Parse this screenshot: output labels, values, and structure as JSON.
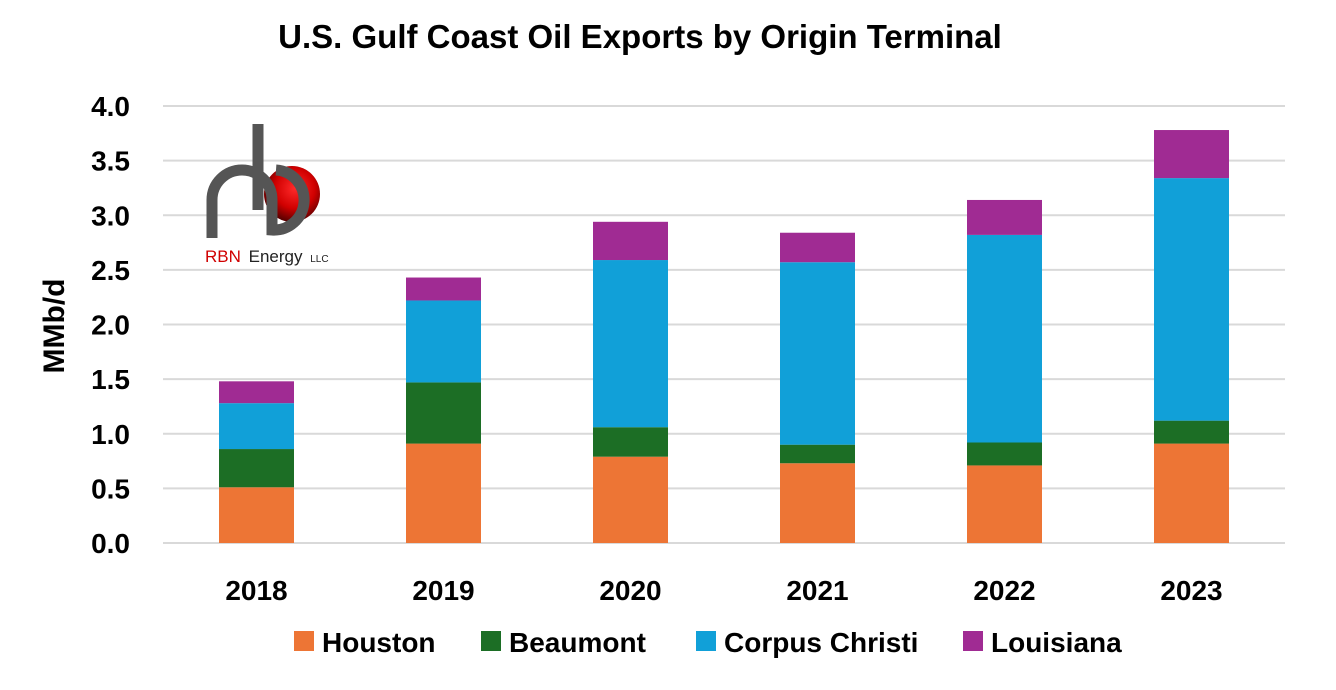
{
  "chart_data": {
    "type": "bar",
    "stacked": true,
    "title": "U.S. Gulf Coast Oil Exports by Origin Terminal",
    "xlabel": "",
    "ylabel": "MMb/d",
    "ylim": [
      0,
      4.0
    ],
    "yticks": [
      "0.0",
      "0.5",
      "1.0",
      "1.5",
      "2.0",
      "2.5",
      "3.0",
      "3.5",
      "4.0"
    ],
    "grid": true,
    "legend_position": "bottom",
    "categories": [
      "2018",
      "2019",
      "2020",
      "2021",
      "2022",
      "2023"
    ],
    "series": [
      {
        "name": "Houston",
        "color": "#ED7535",
        "values": [
          0.51,
          0.91,
          0.79,
          0.73,
          0.71,
          0.91
        ]
      },
      {
        "name": "Beaumont",
        "color": "#1C6E25",
        "values": [
          0.35,
          0.56,
          0.27,
          0.17,
          0.21,
          0.21
        ]
      },
      {
        "name": "Corpus Christi",
        "color": "#11A0D8",
        "values": [
          0.42,
          0.75,
          1.53,
          1.67,
          1.9,
          2.22
        ]
      },
      {
        "name": "Louisiana",
        "color": "#A02B93",
        "values": [
          0.2,
          0.21,
          0.35,
          0.27,
          0.32,
          0.44
        ]
      }
    ]
  },
  "logo": {
    "brand": "RBN",
    "name": "Energy",
    "suffix": "LLC"
  }
}
